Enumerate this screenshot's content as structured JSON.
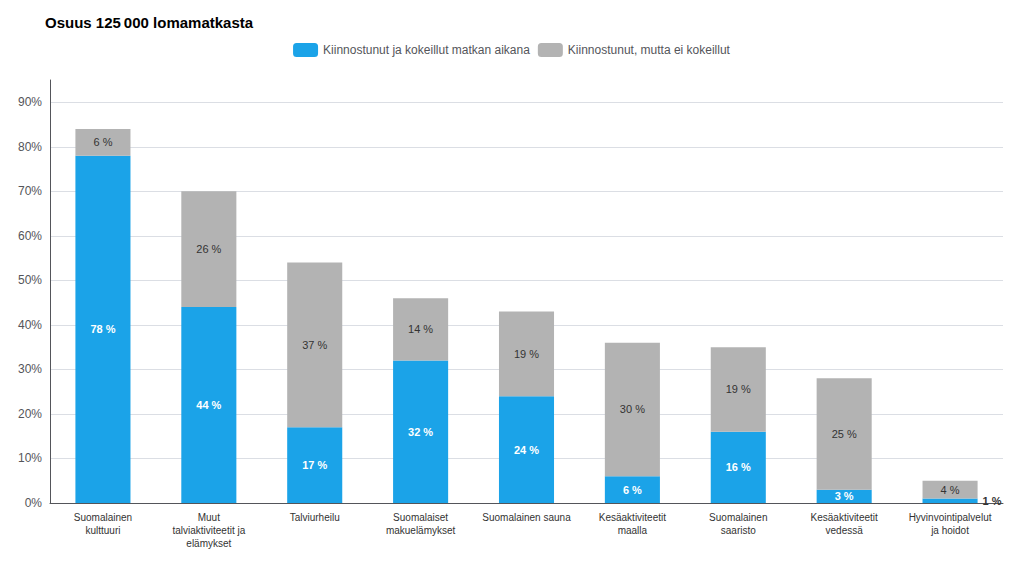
{
  "chart_data": {
    "type": "bar",
    "title": "Osuus 125 000 lomamatkasta",
    "categories": [
      "Suomalainen\nkulttuuri",
      "Muut\ntalviaktiviteetit ja\nelämykset",
      "Talviurheilu",
      "Suomalaiset\nmakuelämykset",
      "Suomalainen sauna",
      "Kesäaktiviteetit\nmaalla",
      "Suomalainen\nsaaristo",
      "Kesäaktiviteetit\nvedessä",
      "Hyvinvointipalvelut\nja hoidot"
    ],
    "series": [
      {
        "name": "Kiinnostunut ja kokeillut matkan aikana",
        "color": "#1ba3e8",
        "values": [
          78,
          44,
          17,
          32,
          24,
          6,
          16,
          3,
          1
        ],
        "value_labels": [
          "78 %",
          "44 %",
          "17 %",
          "32 %",
          "24 %",
          "6 %",
          "16 %",
          "3 %",
          "1 %"
        ]
      },
      {
        "name": "Kiinnostunut, mutta ei kokeillut",
        "color": "#b3b3b3",
        "values": [
          6,
          26,
          37,
          14,
          19,
          30,
          19,
          25,
          4
        ],
        "value_labels": [
          "6 %",
          "26 %",
          "37 %",
          "14 %",
          "19 %",
          "30 %",
          "19 %",
          "25 %",
          "4 %"
        ]
      }
    ],
    "ylim": [
      0,
      95
    ],
    "yticks": [
      {
        "value": 0,
        "label": "0%"
      },
      {
        "value": 10,
        "label": "10%"
      },
      {
        "value": 20,
        "label": "20%"
      },
      {
        "value": 30,
        "label": "30%"
      },
      {
        "value": 40,
        "label": "40%"
      },
      {
        "value": 50,
        "label": "50%"
      },
      {
        "value": 60,
        "label": "60%"
      },
      {
        "value": 70,
        "label": "70%"
      },
      {
        "value": 80,
        "label": "80%"
      },
      {
        "value": 90,
        "label": "90%"
      }
    ],
    "stacked": true,
    "data_labels": true,
    "grid": true,
    "legend": "top"
  }
}
